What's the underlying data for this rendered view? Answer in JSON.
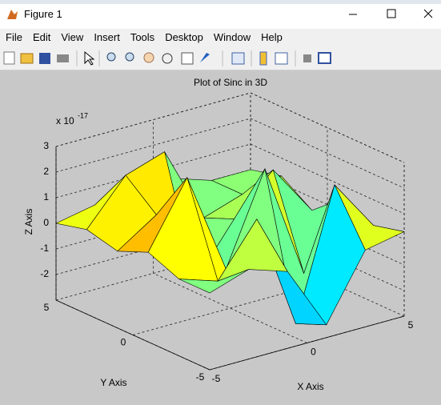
{
  "window": {
    "title": "Figure 1",
    "menu": [
      "File",
      "Edit",
      "View",
      "Insert",
      "Tools",
      "Desktop",
      "Window",
      "Help"
    ]
  },
  "chart_data": {
    "type": "surface",
    "title": "Plot of Sinc in 3D",
    "x_label": "X Axis",
    "y_label": "Y Axis",
    "z_label": "Z Axis",
    "z_scale": "x 10",
    "z_scale_exponent": "-17",
    "x": [
      -5,
      -3,
      -1,
      1,
      3,
      5
    ],
    "y": [
      -5,
      -3,
      -1,
      1,
      3,
      5
    ],
    "z": [
      [
        0,
        0.5,
        0,
        -2.5,
        0,
        0.3
      ],
      [
        0,
        -0.5,
        1.5,
        -3,
        2,
        0
      ],
      [
        0.5,
        3,
        -1,
        2.5,
        -2,
        0.5
      ],
      [
        0,
        1,
        -2,
        0,
        1.5,
        -0.5
      ],
      [
        0.3,
        2,
        2.5,
        -0.5,
        0,
        0.3
      ],
      [
        0,
        0.3,
        0,
        0.5,
        0,
        0
      ]
    ],
    "xlim": [
      -5,
      5
    ],
    "ylim": [
      -5,
      5
    ],
    "zlim": [
      -3,
      3
    ],
    "xticks": [
      -5,
      0,
      5
    ],
    "yticks": [
      -5,
      0,
      5
    ],
    "zticks": [
      -2,
      -1,
      0,
      1,
      2,
      3
    ],
    "grid": true,
    "colormap": "jet"
  }
}
